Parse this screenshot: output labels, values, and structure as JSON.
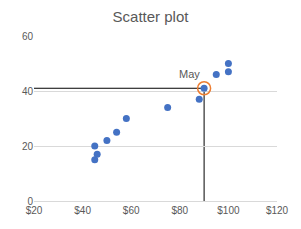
{
  "chart_data": {
    "type": "scatter",
    "title": "Scatter plot",
    "x": [
      45,
      46,
      45,
      50,
      54,
      58,
      75,
      88,
      90,
      95,
      100,
      100
    ],
    "values": [
      20,
      17,
      15,
      22,
      25,
      30,
      34,
      37,
      41,
      46,
      47,
      50
    ],
    "color": "#4472c4",
    "xlim": [
      20,
      120
    ],
    "xticks": [
      {
        "value": 20,
        "label": "$20"
      },
      {
        "value": 40,
        "label": "$40"
      },
      {
        "value": 60,
        "label": "$60"
      },
      {
        "value": 80,
        "label": "$80"
      },
      {
        "value": 100,
        "label": "$100"
      },
      {
        "value": 120,
        "label": "$120"
      }
    ],
    "ylim": [
      0,
      60
    ],
    "yticks": [
      0,
      20,
      40,
      60
    ],
    "grid": true,
    "annotations": [
      {
        "text": "May",
        "x": 90,
        "y": 41,
        "color": "#ed7d31"
      }
    ]
  }
}
